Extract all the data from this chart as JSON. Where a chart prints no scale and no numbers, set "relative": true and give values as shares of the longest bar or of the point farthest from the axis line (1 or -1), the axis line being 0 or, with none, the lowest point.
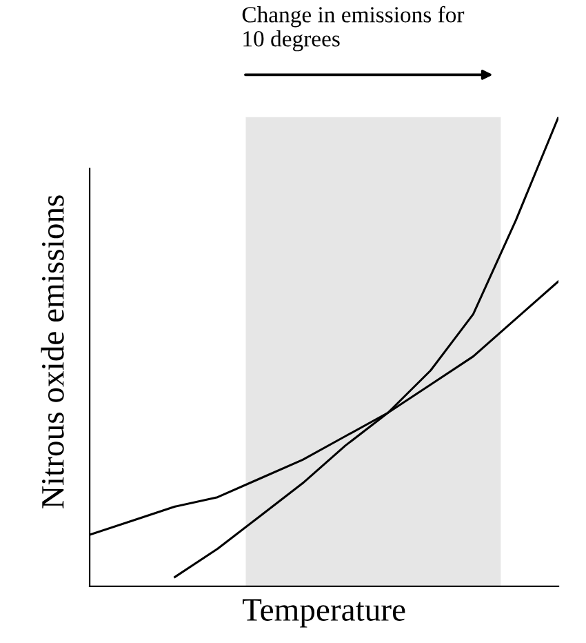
{
  "chart_data": {
    "type": "line",
    "relative": true,
    "xlabel": "Temperature",
    "ylabel": "Nitrous oxide emissions",
    "categories": [
      null,
      null,
      null,
      null,
      null,
      null,
      null,
      null,
      null,
      null,
      null,
      null
    ],
    "series": [
      {
        "color": "#000000",
        "values": [
          0.11,
          0.14,
          0.17,
          0.19,
          0.23,
          0.27,
          0.32,
          0.37,
          0.43,
          0.49,
          0.57,
          0.65
        ]
      },
      {
        "color": "#000000",
        "values": [
          null,
          null,
          0.02,
          0.08,
          0.15,
          0.22,
          0.3,
          0.37,
          0.46,
          0.58,
          0.78,
          1.0
        ]
      }
    ],
    "annotations": [
      "Change in emissions for\n10 degrees"
    ],
    "legend": false,
    "marker": "none",
    "line_style": "solid"
  }
}
